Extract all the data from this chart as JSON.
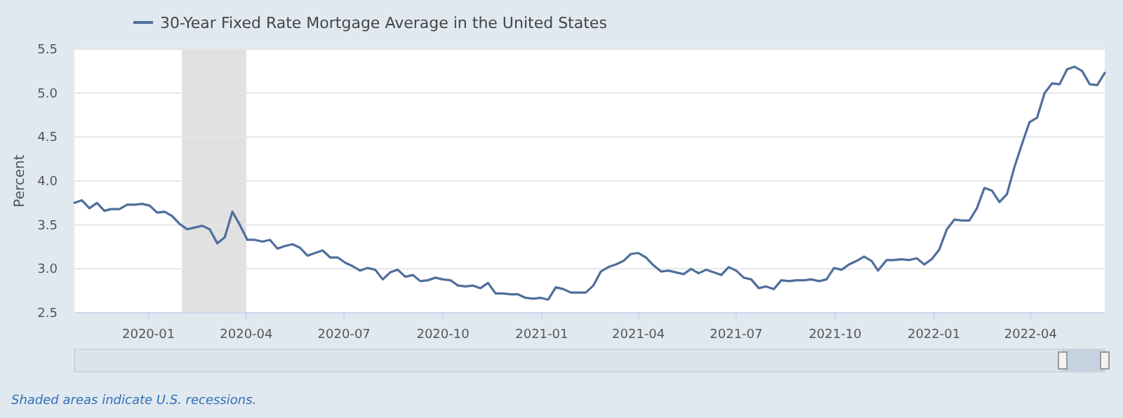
{
  "chart_data": {
    "type": "line",
    "ylabel": "Percent",
    "legend": "top left",
    "grid": "y",
    "marker": "none",
    "line_style": "solid",
    "xlim": [
      "2019-10-24",
      "2022-06-09"
    ],
    "ylim": [
      2.5,
      5.5
    ],
    "yticks": [
      {
        "value": 2.5,
        "label": "2.5"
      },
      {
        "value": 3,
        "label": "3.0"
      },
      {
        "value": 3.5,
        "label": "3.5"
      },
      {
        "value": 4,
        "label": "4.0"
      },
      {
        "value": 4.5,
        "label": "4.5"
      },
      {
        "value": 5,
        "label": "5.0"
      },
      {
        "value": 5.5,
        "label": "5.5"
      }
    ],
    "xticks": [
      {
        "value": "2020-01",
        "label": "2020-01"
      },
      {
        "value": "2020-04",
        "label": "2020-04"
      },
      {
        "value": "2020-07",
        "label": "2020-07"
      },
      {
        "value": "2020-10",
        "label": "2020-10"
      },
      {
        "value": "2021-01",
        "label": "2021-01"
      },
      {
        "value": "2021-04",
        "label": "2021-04"
      },
      {
        "value": "2021-07",
        "label": "2021-07"
      },
      {
        "value": "2021-10",
        "label": "2021-10"
      },
      {
        "value": "2022-01",
        "label": "2022-01"
      },
      {
        "value": "2022-04",
        "label": "2022-04"
      }
    ],
    "bands": [
      {
        "axis": "x",
        "from": "2020-02",
        "to": "2020-04",
        "color": "#e1e1e1"
      }
    ],
    "annotations": [
      "Shaded areas indicate U.S. recessions."
    ],
    "x": [
      "2019-10-24",
      "2019-10-31",
      "2019-11-07",
      "2019-11-14",
      "2019-11-21",
      "2019-11-27",
      "2019-12-05",
      "2019-12-12",
      "2019-12-19",
      "2019-12-26",
      "2020-01-02",
      "2020-01-09",
      "2020-01-16",
      "2020-01-23",
      "2020-01-30",
      "2020-02-06",
      "2020-02-13",
      "2020-02-20",
      "2020-02-27",
      "2020-03-05",
      "2020-03-12",
      "2020-03-19",
      "2020-03-26",
      "2020-04-02",
      "2020-04-09",
      "2020-04-16",
      "2020-04-23",
      "2020-04-30",
      "2020-05-07",
      "2020-05-14",
      "2020-05-21",
      "2020-05-28",
      "2020-06-04",
      "2020-06-11",
      "2020-06-18",
      "2020-06-25",
      "2020-07-02",
      "2020-07-09",
      "2020-07-16",
      "2020-07-23",
      "2020-07-30",
      "2020-08-06",
      "2020-08-13",
      "2020-08-20",
      "2020-08-27",
      "2020-09-03",
      "2020-09-10",
      "2020-09-17",
      "2020-09-24",
      "2020-10-01",
      "2020-10-08",
      "2020-10-15",
      "2020-10-22",
      "2020-10-29",
      "2020-11-05",
      "2020-11-12",
      "2020-11-19",
      "2020-11-25",
      "2020-12-03",
      "2020-12-10",
      "2020-12-17",
      "2020-12-24",
      "2020-12-31",
      "2021-01-07",
      "2021-01-14",
      "2021-01-21",
      "2021-01-28",
      "2021-02-04",
      "2021-02-11",
      "2021-02-18",
      "2021-02-25",
      "2021-03-04",
      "2021-03-11",
      "2021-03-18",
      "2021-03-25",
      "2021-04-01",
      "2021-04-08",
      "2021-04-15",
      "2021-04-22",
      "2021-04-29",
      "2021-05-06",
      "2021-05-13",
      "2021-05-20",
      "2021-05-27",
      "2021-06-03",
      "2021-06-10",
      "2021-06-17",
      "2021-06-24",
      "2021-07-01",
      "2021-07-08",
      "2021-07-15",
      "2021-07-22",
      "2021-07-29",
      "2021-08-05",
      "2021-08-12",
      "2021-08-19",
      "2021-08-26",
      "2021-09-02",
      "2021-09-09",
      "2021-09-16",
      "2021-09-23",
      "2021-09-30",
      "2021-10-07",
      "2021-10-14",
      "2021-10-21",
      "2021-10-28",
      "2021-11-04",
      "2021-11-10",
      "2021-11-18",
      "2021-11-24",
      "2021-12-02",
      "2021-12-09",
      "2021-12-16",
      "2021-12-23",
      "2021-12-30",
      "2022-01-06",
      "2022-01-13",
      "2022-01-20",
      "2022-01-27",
      "2022-02-03",
      "2022-02-10",
      "2022-02-17",
      "2022-02-24",
      "2022-03-03",
      "2022-03-10",
      "2022-03-17",
      "2022-03-24",
      "2022-03-31",
      "2022-04-07",
      "2022-04-14",
      "2022-04-21",
      "2022-04-28",
      "2022-05-05",
      "2022-05-12",
      "2022-05-19",
      "2022-05-26",
      "2022-06-02",
      "2022-06-09"
    ],
    "series": [
      {
        "name": "30-Year Fixed Rate Mortgage Average in the United States",
        "color": "#4f6f9c",
        "values": [
          3.75,
          3.78,
          3.69,
          3.75,
          3.66,
          3.68,
          3.68,
          3.73,
          3.73,
          3.74,
          3.72,
          3.64,
          3.65,
          3.6,
          3.51,
          3.45,
          3.47,
          3.49,
          3.45,
          3.29,
          3.36,
          3.65,
          3.5,
          3.33,
          3.33,
          3.31,
          3.33,
          3.23,
          3.26,
          3.28,
          3.24,
          3.15,
          3.18,
          3.21,
          3.13,
          3.13,
          3.07,
          3.03,
          2.98,
          3.01,
          2.99,
          2.88,
          2.96,
          2.99,
          2.91,
          2.93,
          2.86,
          2.87,
          2.9,
          2.88,
          2.87,
          2.81,
          2.8,
          2.81,
          2.78,
          2.84,
          2.72,
          2.72,
          2.71,
          2.71,
          2.67,
          2.66,
          2.67,
          2.65,
          2.79,
          2.77,
          2.73,
          2.73,
          2.73,
          2.81,
          2.97,
          3.02,
          3.05,
          3.09,
          3.17,
          3.18,
          3.13,
          3.04,
          2.97,
          2.98,
          2.96,
          2.94,
          3.0,
          2.95,
          2.99,
          2.96,
          2.93,
          3.02,
          2.98,
          2.9,
          2.88,
          2.78,
          2.8,
          2.77,
          2.87,
          2.86,
          2.87,
          2.87,
          2.88,
          2.86,
          2.88,
          3.01,
          2.99,
          3.05,
          3.09,
          3.14,
          3.09,
          2.98,
          3.1,
          3.1,
          3.11,
          3.1,
          3.12,
          3.05,
          3.11,
          3.22,
          3.45,
          3.56,
          3.55,
          3.55,
          3.69,
          3.92,
          3.89,
          3.76,
          3.85,
          4.16,
          4.42,
          4.67,
          4.72,
          5.0,
          5.11,
          5.1,
          5.27,
          5.3,
          5.25,
          5.1,
          5.09,
          5.23
        ]
      }
    ]
  }
}
